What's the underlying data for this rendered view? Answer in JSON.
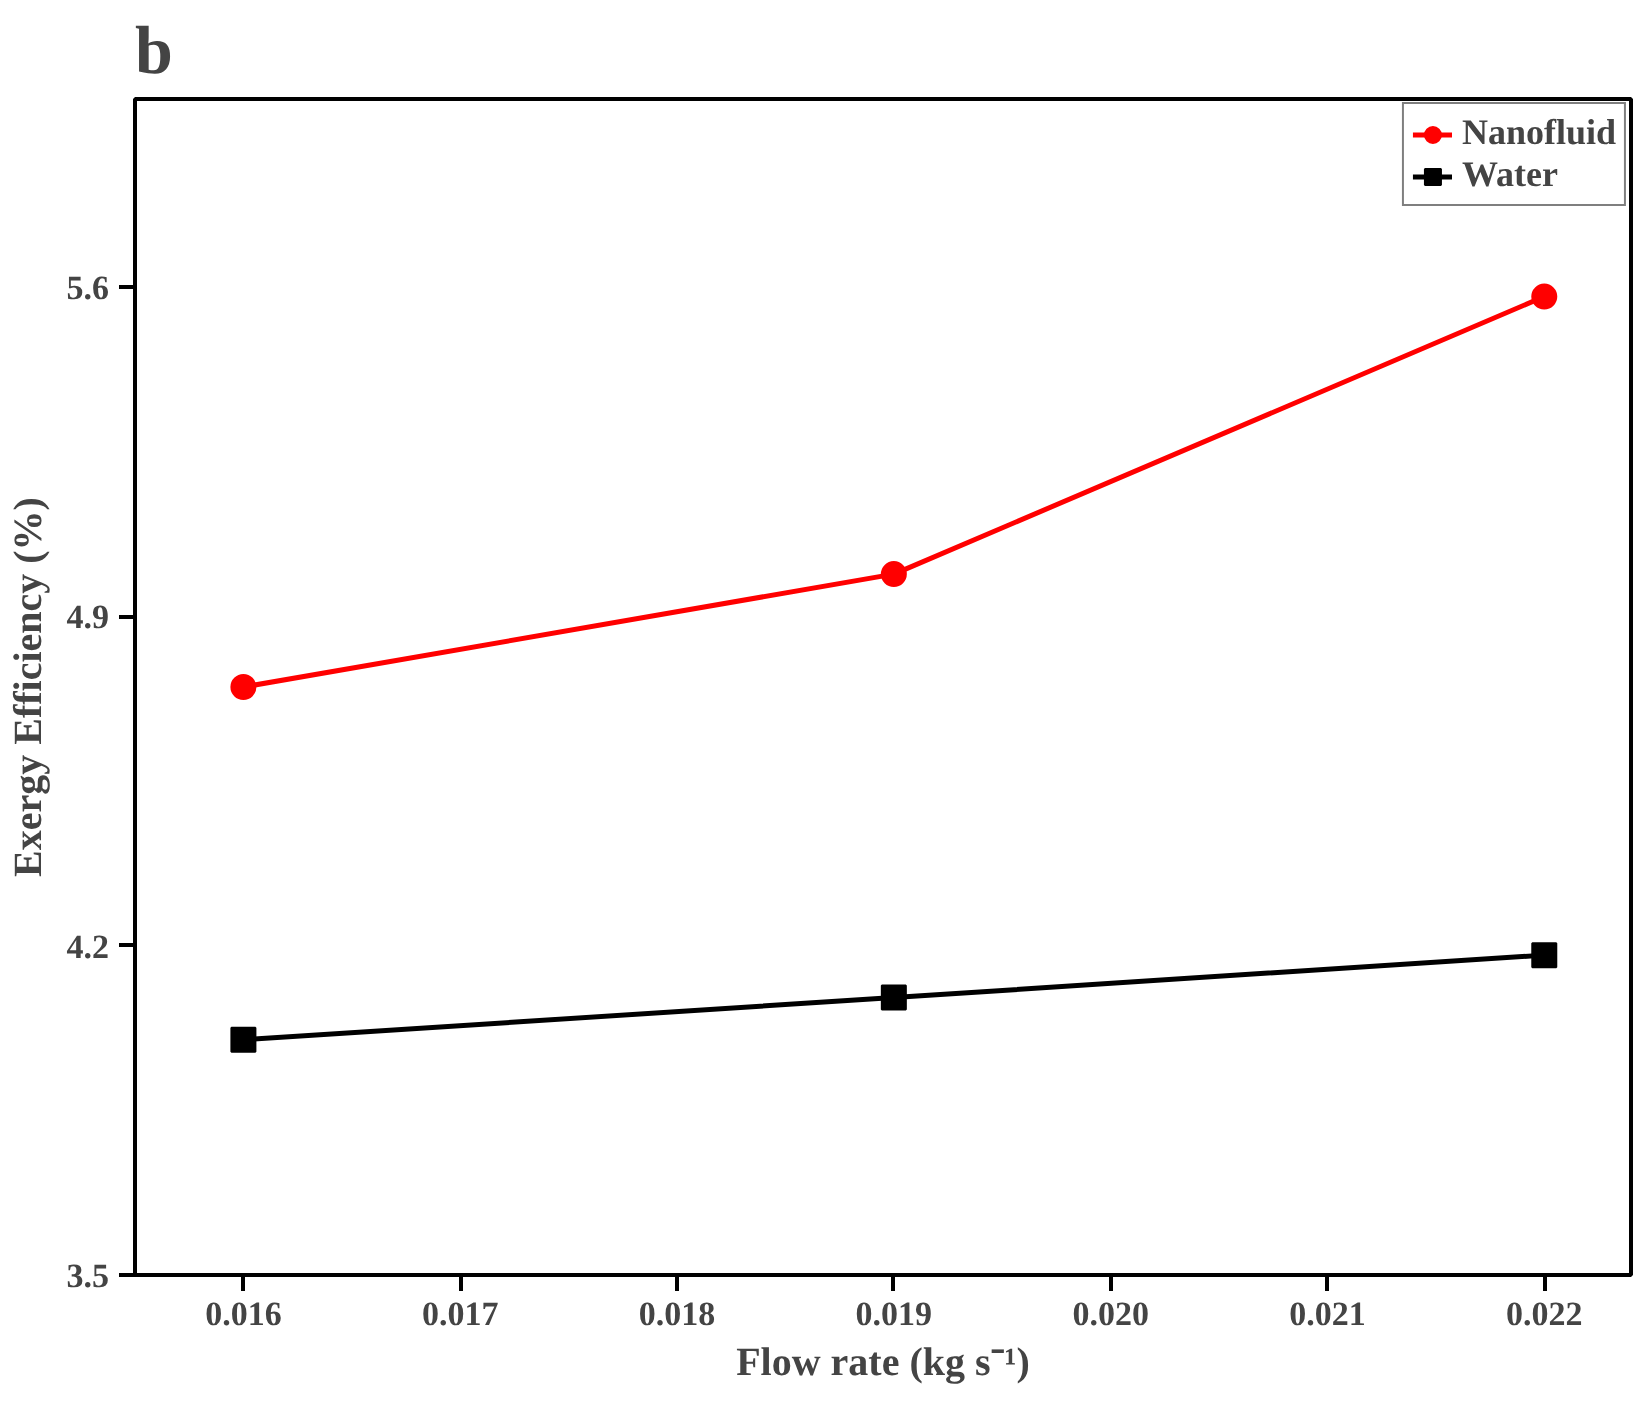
{
  "chart_data": {
    "type": "line",
    "title": "b",
    "xlabel": "Flow rate (kg s⁻¹)",
    "ylabel": "Exergy Efficiency (%)",
    "x": [
      0.016,
      0.019,
      0.022
    ],
    "series": [
      {
        "name": "Nanofluid",
        "color": "#ff0000",
        "marker": "circle",
        "values": [
          4.75,
          4.99,
          5.58
        ]
      },
      {
        "name": "Water",
        "color": "#000000",
        "marker": "square",
        "values": [
          4.0,
          4.09,
          4.18
        ]
      }
    ],
    "xlim": [
      0.0155,
      0.0224
    ],
    "ylim": [
      3.5,
      6.0
    ],
    "xticks": [
      {
        "value": 0.016,
        "label": "0.016"
      },
      {
        "value": 0.017,
        "label": "0.017"
      },
      {
        "value": 0.018,
        "label": "0.018"
      },
      {
        "value": 0.019,
        "label": "0.019"
      },
      {
        "value": 0.02,
        "label": "0.020"
      },
      {
        "value": 0.021,
        "label": "0.021"
      },
      {
        "value": 0.022,
        "label": "0.022"
      }
    ],
    "yticks": [
      3.5,
      4.2,
      4.9,
      5.6
    ],
    "grid": false,
    "legend": "top right",
    "line_style": "solid"
  }
}
